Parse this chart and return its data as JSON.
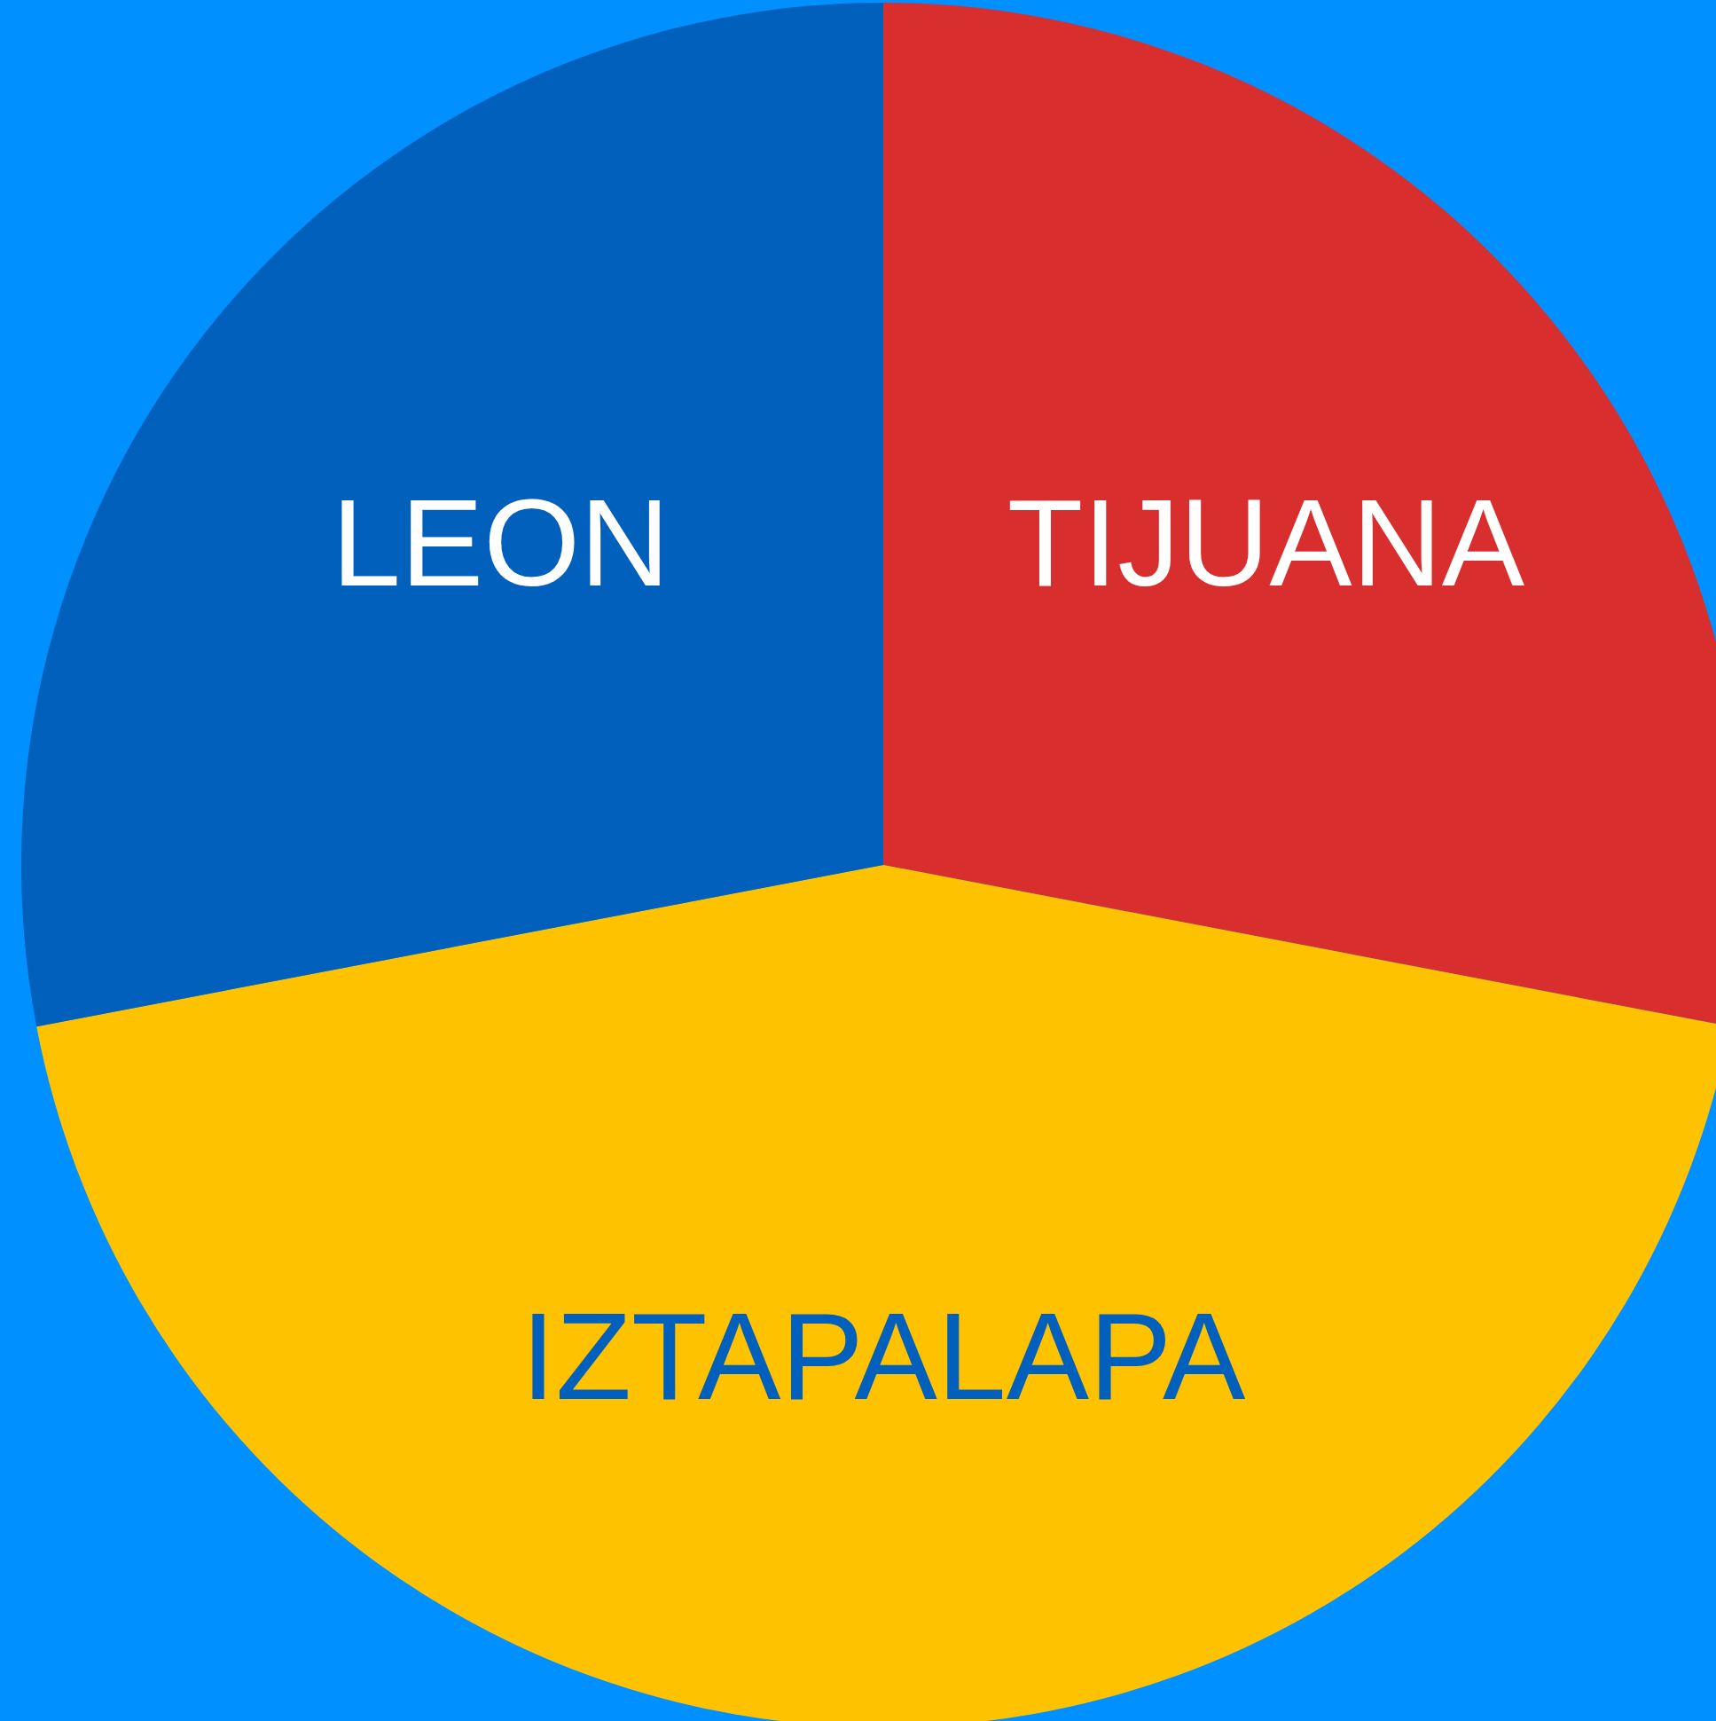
{
  "chart_data": {
    "type": "pie",
    "categories": [
      "TIJUANA",
      "IZTAPALAPA",
      "LEON"
    ],
    "values": [
      28,
      44,
      28
    ],
    "colors": [
      "#d92e2e",
      "#ffc200",
      "#0260bd"
    ]
  }
}
